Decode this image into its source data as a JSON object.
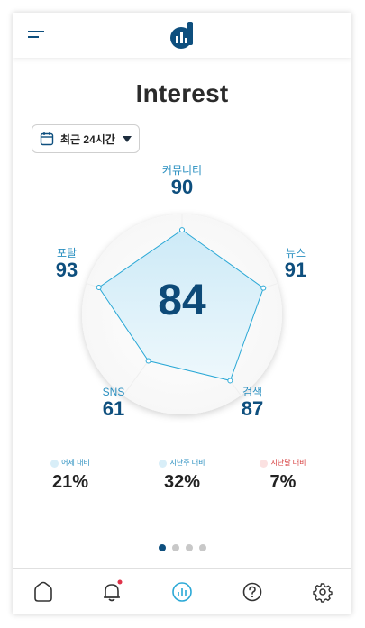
{
  "header": {
    "menu_icon": "hamburger-menu-icon",
    "logo_icon": "d-logo-icon"
  },
  "page": {
    "title": "Interest"
  },
  "period_select": {
    "icon": "calendar-icon",
    "selected": "최근 24시간"
  },
  "radar": {
    "score": "84",
    "axes": [
      {
        "name": "커뮤니티",
        "value": "90"
      },
      {
        "name": "뉴스",
        "value": "91"
      },
      {
        "name": "검색",
        "value": "87"
      },
      {
        "name": "SNS",
        "value": "61"
      },
      {
        "name": "포탈",
        "value": "93"
      }
    ],
    "colors": {
      "stroke": "#2aa8d6",
      "fill": "#d6eef8",
      "point": "#ffffff"
    }
  },
  "comparisons": [
    {
      "label": "어제 대비",
      "value": "21%",
      "trend": "up"
    },
    {
      "label": "지난주 대비",
      "value": "32%",
      "trend": "up"
    },
    {
      "label": "지난달 대비",
      "value": "7%",
      "trend": "down"
    }
  ],
  "pagination": {
    "count": 4,
    "active": 0
  },
  "bottom_nav": [
    {
      "name": "home-icon"
    },
    {
      "name": "notification-bell-icon",
      "badge": true
    },
    {
      "name": "stats-icon",
      "active": true
    },
    {
      "name": "help-icon"
    },
    {
      "name": "settings-icon"
    }
  ],
  "colors": {
    "accent": "#0e4f7e",
    "accent_light": "#2a8fc0",
    "negative": "#d63a3a",
    "badge": "#e0334a"
  }
}
